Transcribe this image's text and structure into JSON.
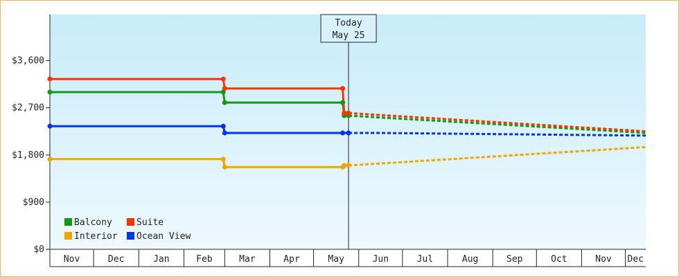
{
  "chart_data": {
    "type": "line",
    "title": "",
    "xlabel": "",
    "ylabel": "",
    "x_range": [
      "2022-11-01",
      "2023-12-15"
    ],
    "ylim": [
      0,
      4480
    ],
    "yticks": [
      0,
      900,
      1800,
      2700,
      3600
    ],
    "ytick_labels": [
      "$0",
      "$900",
      "$1,800",
      "$2,700",
      "$3,600"
    ],
    "months": [
      {
        "label": "Nov",
        "start": "2022-11-01",
        "end": "2022-12-01"
      },
      {
        "label": "Dec",
        "start": "2022-12-01",
        "end": "2023-01-01"
      },
      {
        "label": "Jan",
        "start": "2023-01-01",
        "end": "2023-02-01"
      },
      {
        "label": "Feb",
        "start": "2023-02-01",
        "end": "2023-03-01"
      },
      {
        "label": "Mar",
        "start": "2023-03-01",
        "end": "2023-04-01"
      },
      {
        "label": "Apr",
        "start": "2023-04-01",
        "end": "2023-05-01"
      },
      {
        "label": "May",
        "start": "2023-05-01",
        "end": "2023-06-01"
      },
      {
        "label": "Jun",
        "start": "2023-06-01",
        "end": "2023-07-01"
      },
      {
        "label": "Jul",
        "start": "2023-07-01",
        "end": "2023-08-01"
      },
      {
        "label": "Aug",
        "start": "2023-08-01",
        "end": "2023-09-01"
      },
      {
        "label": "Sep",
        "start": "2023-09-01",
        "end": "2023-10-01"
      },
      {
        "label": "Oct",
        "start": "2023-10-01",
        "end": "2023-11-01"
      },
      {
        "label": "Nov",
        "start": "2023-11-01",
        "end": "2023-12-01"
      },
      {
        "label": "Dec",
        "start": "2023-12-01",
        "end": "2023-12-15"
      }
    ],
    "today": {
      "line1": "Today",
      "line2": "May 25",
      "date": "2023-05-25"
    },
    "series": [
      {
        "name": "Balcony",
        "color": "#119911",
        "history": [
          [
            "2022-11-01",
            3000
          ],
          [
            "2023-02-28",
            3000
          ],
          [
            "2023-03-01",
            2800
          ],
          [
            "2023-05-21",
            2800
          ],
          [
            "2023-05-22",
            2550
          ],
          [
            "2023-05-25",
            2550
          ]
        ],
        "forecast": [
          [
            "2023-05-25",
            2550
          ],
          [
            "2023-12-15",
            2220
          ]
        ]
      },
      {
        "name": "Suite",
        "color": "#ff3300",
        "history": [
          [
            "2022-11-01",
            3250
          ],
          [
            "2023-02-28",
            3250
          ],
          [
            "2023-03-01",
            3070
          ],
          [
            "2023-05-21",
            3070
          ],
          [
            "2023-05-22",
            2600
          ],
          [
            "2023-05-25",
            2600
          ]
        ],
        "forecast": [
          [
            "2023-05-25",
            2600
          ],
          [
            "2023-12-15",
            2250
          ]
        ]
      },
      {
        "name": "Interior",
        "color": "#f5a300",
        "history": [
          [
            "2022-11-01",
            1720
          ],
          [
            "2023-02-28",
            1720
          ],
          [
            "2023-03-01",
            1570
          ],
          [
            "2023-05-21",
            1570
          ],
          [
            "2023-05-22",
            1600
          ],
          [
            "2023-05-25",
            1600
          ]
        ],
        "forecast": [
          [
            "2023-05-25",
            1600
          ],
          [
            "2023-12-15",
            1950
          ]
        ]
      },
      {
        "name": "Ocean View",
        "color": "#0033ee",
        "history": [
          [
            "2022-11-01",
            2350
          ],
          [
            "2023-02-28",
            2350
          ],
          [
            "2023-03-01",
            2220
          ],
          [
            "2023-05-21",
            2220
          ],
          [
            "2023-05-25",
            2220
          ]
        ],
        "forecast": [
          [
            "2023-05-25",
            2220
          ],
          [
            "2023-06-15",
            2220
          ],
          [
            "2023-12-15",
            2170
          ]
        ]
      }
    ],
    "markers": {
      "Balcony": [
        [
          "2022-11-01",
          3000
        ],
        [
          "2023-02-28",
          3000
        ],
        [
          "2023-03-01",
          2800
        ],
        [
          "2023-05-21",
          2800
        ],
        [
          "2023-05-22",
          2550
        ],
        [
          "2023-05-25",
          2550
        ]
      ],
      "Suite": [
        [
          "2022-11-01",
          3250
        ],
        [
          "2023-02-28",
          3250
        ],
        [
          "2023-03-01",
          3070
        ],
        [
          "2023-05-21",
          3070
        ],
        [
          "2023-05-22",
          2600
        ],
        [
          "2023-05-25",
          2600
        ]
      ],
      "Interior": [
        [
          "2022-11-01",
          1720
        ],
        [
          "2023-02-28",
          1720
        ],
        [
          "2023-03-01",
          1570
        ],
        [
          "2023-05-21",
          1570
        ],
        [
          "2023-05-22",
          1600
        ],
        [
          "2023-05-25",
          1600
        ]
      ],
      "Ocean View": [
        [
          "2022-11-01",
          2350
        ],
        [
          "2023-02-28",
          2350
        ],
        [
          "2023-03-01",
          2220
        ],
        [
          "2023-05-21",
          2220
        ],
        [
          "2023-05-25",
          2220
        ]
      ]
    },
    "legend": {
      "placement": "bottom-left",
      "rows": [
        [
          "Balcony",
          "Suite"
        ],
        [
          "Interior",
          "Ocean View"
        ]
      ]
    },
    "colors": {
      "frame": "#f2b36b",
      "plot_top": "#c8ecfa",
      "plot_bottom": "#eef9fe",
      "axis": "#222222"
    }
  }
}
